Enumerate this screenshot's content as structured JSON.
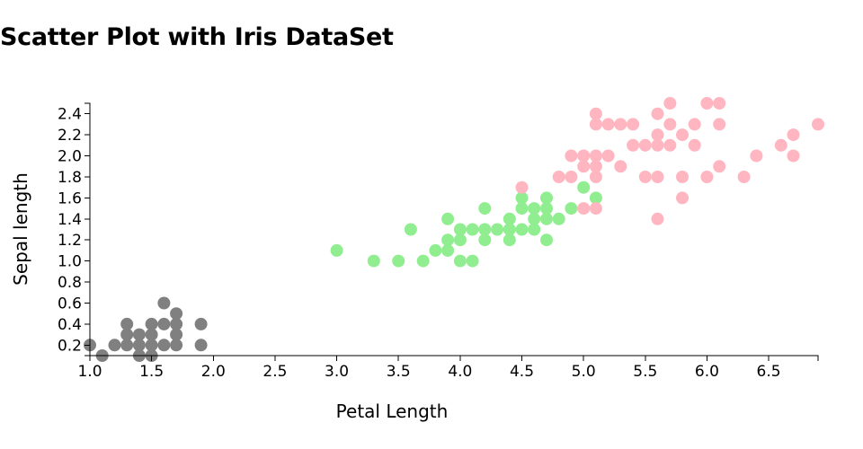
{
  "title": "Scatter Plot with Iris DataSet",
  "chart_data": {
    "type": "scatter",
    "title": "Scatter Plot with Iris DataSet",
    "xlabel": "Petal Length",
    "ylabel": "Sepal length",
    "xlim": [
      1.0,
      6.9
    ],
    "ylim": [
      0.1,
      2.5
    ],
    "x_ticks": [
      "1.0",
      "1.5",
      "2.0",
      "2.5",
      "3.0",
      "3.5",
      "4.0",
      "4.5",
      "5.0",
      "5.5",
      "6.0",
      "6.5"
    ],
    "y_ticks": [
      "0.2",
      "0.4",
      "0.6",
      "0.8",
      "1.0",
      "1.2",
      "1.4",
      "1.6",
      "1.8",
      "2.0",
      "2.2",
      "2.4"
    ],
    "grid": false,
    "legend": "none",
    "series": [
      {
        "color": "#808080",
        "points": [
          [
            1.0,
            0.2
          ],
          [
            1.1,
            0.1
          ],
          [
            1.2,
            0.2
          ],
          [
            1.3,
            0.2
          ],
          [
            1.3,
            0.3
          ],
          [
            1.3,
            0.4
          ],
          [
            1.4,
            0.1
          ],
          [
            1.4,
            0.2
          ],
          [
            1.4,
            0.3
          ],
          [
            1.5,
            0.1
          ],
          [
            1.5,
            0.2
          ],
          [
            1.5,
            0.3
          ],
          [
            1.5,
            0.4
          ],
          [
            1.6,
            0.2
          ],
          [
            1.6,
            0.4
          ],
          [
            1.6,
            0.6
          ],
          [
            1.7,
            0.2
          ],
          [
            1.7,
            0.3
          ],
          [
            1.7,
            0.4
          ],
          [
            1.7,
            0.5
          ],
          [
            1.9,
            0.2
          ],
          [
            1.9,
            0.4
          ]
        ]
      },
      {
        "color": "#90ee90",
        "points": [
          [
            3.0,
            1.1
          ],
          [
            3.3,
            1.0
          ],
          [
            3.5,
            1.0
          ],
          [
            3.6,
            1.3
          ],
          [
            3.7,
            1.0
          ],
          [
            3.8,
            1.1
          ],
          [
            3.9,
            1.1
          ],
          [
            3.9,
            1.2
          ],
          [
            3.9,
            1.4
          ],
          [
            4.0,
            1.0
          ],
          [
            4.0,
            1.2
          ],
          [
            4.0,
            1.3
          ],
          [
            4.1,
            1.0
          ],
          [
            4.1,
            1.3
          ],
          [
            4.2,
            1.2
          ],
          [
            4.2,
            1.3
          ],
          [
            4.2,
            1.5
          ],
          [
            4.3,
            1.3
          ],
          [
            4.4,
            1.2
          ],
          [
            4.4,
            1.3
          ],
          [
            4.4,
            1.4
          ],
          [
            4.5,
            1.3
          ],
          [
            4.5,
            1.5
          ],
          [
            4.5,
            1.6
          ],
          [
            4.6,
            1.3
          ],
          [
            4.6,
            1.4
          ],
          [
            4.6,
            1.5
          ],
          [
            4.7,
            1.2
          ],
          [
            4.7,
            1.4
          ],
          [
            4.7,
            1.5
          ],
          [
            4.7,
            1.6
          ],
          [
            4.8,
            1.4
          ],
          [
            4.9,
            1.5
          ],
          [
            5.0,
            1.7
          ],
          [
            5.1,
            1.6
          ]
        ]
      },
      {
        "color": "#ffb6c1",
        "points": [
          [
            4.5,
            1.7
          ],
          [
            4.8,
            1.8
          ],
          [
            4.9,
            1.8
          ],
          [
            4.9,
            2.0
          ],
          [
            5.0,
            1.5
          ],
          [
            5.0,
            1.9
          ],
          [
            5.0,
            2.0
          ],
          [
            5.1,
            1.5
          ],
          [
            5.1,
            1.8
          ],
          [
            5.1,
            1.9
          ],
          [
            5.1,
            2.0
          ],
          [
            5.1,
            2.3
          ],
          [
            5.1,
            2.4
          ],
          [
            5.2,
            2.0
          ],
          [
            5.2,
            2.3
          ],
          [
            5.3,
            1.9
          ],
          [
            5.3,
            2.3
          ],
          [
            5.4,
            2.1
          ],
          [
            5.4,
            2.3
          ],
          [
            5.5,
            1.8
          ],
          [
            5.5,
            2.1
          ],
          [
            5.6,
            1.4
          ],
          [
            5.6,
            1.8
          ],
          [
            5.6,
            2.1
          ],
          [
            5.6,
            2.2
          ],
          [
            5.6,
            2.4
          ],
          [
            5.7,
            2.1
          ],
          [
            5.7,
            2.3
          ],
          [
            5.7,
            2.5
          ],
          [
            5.8,
            1.6
          ],
          [
            5.8,
            1.8
          ],
          [
            5.8,
            2.2
          ],
          [
            5.9,
            2.1
          ],
          [
            5.9,
            2.3
          ],
          [
            6.0,
            1.8
          ],
          [
            6.0,
            2.5
          ],
          [
            6.1,
            1.9
          ],
          [
            6.1,
            2.3
          ],
          [
            6.1,
            2.5
          ],
          [
            6.3,
            1.8
          ],
          [
            6.4,
            2.0
          ],
          [
            6.6,
            2.1
          ],
          [
            6.7,
            2.0
          ],
          [
            6.7,
            2.2
          ],
          [
            6.9,
            2.3
          ]
        ]
      }
    ]
  }
}
